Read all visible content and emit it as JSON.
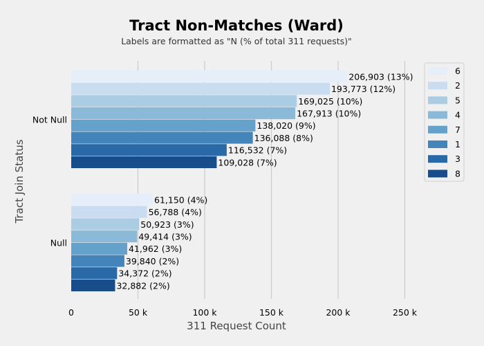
{
  "chart_data": {
    "type": "bar",
    "orientation": "horizontal",
    "title": "Tract Non-Matches (Ward)",
    "subtitle": "Labels are formatted as \"N (% of total 311 requests)\"",
    "xlabel": "311 Request Count",
    "ylabel": "Tract Join Status",
    "xlim": [
      0,
      260000
    ],
    "xticks": [
      0,
      50000,
      100000,
      150000,
      200000,
      250000
    ],
    "xtick_labels": [
      "0",
      "50 k",
      "100 k",
      "150 k",
      "200 k",
      "250 k"
    ],
    "grid": true,
    "legend_position": "top-right",
    "categories": [
      "Not Null",
      "Null"
    ],
    "series": [
      {
        "name": "6",
        "color": "#e6eff9",
        "values": [
          206903,
          61150
        ],
        "labels": [
          "206,903 (13%)",
          "61,150 (4%)"
        ]
      },
      {
        "name": "2",
        "color": "#cadcef",
        "values": [
          193773,
          56788
        ],
        "labels": [
          "193,773 (12%)",
          "56,788 (4%)"
        ]
      },
      {
        "name": "5",
        "color": "#abcde3",
        "values": [
          169025,
          50923
        ],
        "labels": [
          "169,025 (10%)",
          "50,923 (3%)"
        ]
      },
      {
        "name": "4",
        "color": "#8abad7",
        "values": [
          167913,
          49414
        ],
        "labels": [
          "167,913 (10%)",
          "49,414 (3%)"
        ]
      },
      {
        "name": "7",
        "color": "#64a1cb",
        "values": [
          138020,
          41962
        ],
        "labels": [
          "138,020 (9%)",
          "41,962 (3%)"
        ]
      },
      {
        "name": "1",
        "color": "#4384bb",
        "values": [
          136088,
          39840
        ],
        "labels": [
          "136,088 (8%)",
          "39,840 (2%)"
        ]
      },
      {
        "name": "3",
        "color": "#2a69a8",
        "values": [
          116532,
          34372
        ],
        "labels": [
          "116,532 (7%)",
          "34,372 (2%)"
        ]
      },
      {
        "name": "8",
        "color": "#174d8b",
        "values": [
          109028,
          32882
        ],
        "labels": [
          "109,028 (7%)",
          "32,882 (2%)"
        ]
      }
    ]
  }
}
